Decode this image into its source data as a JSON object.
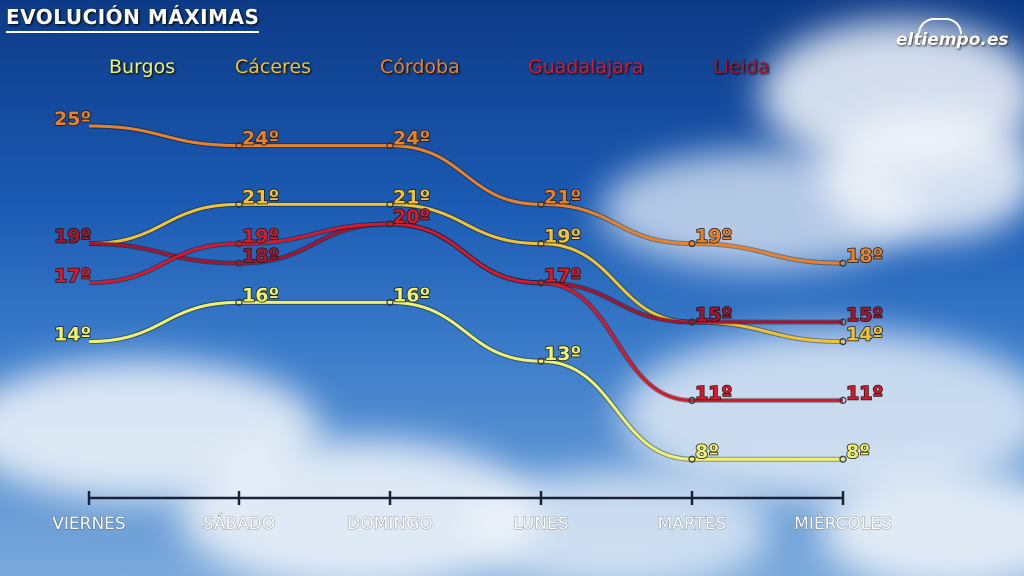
{
  "title": "EVOLUCIÓN MÁXIMAS",
  "brand": "eltiempo.es",
  "chart_data": {
    "type": "line",
    "title": "EVOLUCIÓN MÁXIMAS",
    "categories": [
      "VIERNES",
      "SÁBADO",
      "DOMINGO",
      "LUNES",
      "MARTES",
      "MIÉRCOLES"
    ],
    "value_suffix": "º",
    "grid": false,
    "legend_position": "top",
    "series": [
      {
        "name": "Burgos",
        "color": "#f2f26a",
        "values": [
          14,
          16,
          16,
          13,
          8,
          8
        ]
      },
      {
        "name": "Cáceres",
        "color": "#f1c232",
        "values": [
          19,
          21,
          21,
          19,
          15,
          14
        ]
      },
      {
        "name": "Córdoba",
        "color": "#e8822a",
        "values": [
          25,
          24,
          24,
          21,
          19,
          18
        ]
      },
      {
        "name": "Guadalajara",
        "color": "#d8192a",
        "values": [
          17,
          19,
          20,
          17,
          11,
          11
        ]
      },
      {
        "name": "Lleida",
        "color": "#a5162c",
        "values": [
          19,
          18,
          20,
          17,
          15,
          15
        ]
      }
    ]
  }
}
